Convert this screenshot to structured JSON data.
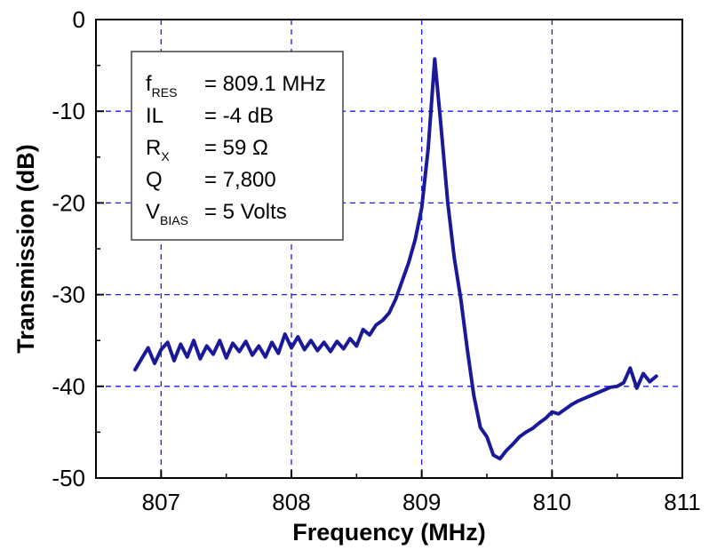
{
  "chart_data": {
    "type": "line",
    "title": "",
    "xlabel": "Frequency (MHz)",
    "ylabel": "Transmission (dB)",
    "xlim": [
      806.5,
      811
    ],
    "ylim": [
      -50,
      0
    ],
    "x_ticks": [
      807,
      808,
      809,
      810,
      811
    ],
    "y_ticks": [
      0,
      -10,
      -20,
      -30,
      -40,
      -50
    ],
    "x_tick_labels": [
      "807",
      "808",
      "809",
      "810",
      "811"
    ],
    "y_tick_labels": [
      "0",
      "-10",
      "-20",
      "-30",
      "-40",
      "-50"
    ],
    "grid": true,
    "grid_style": "dashed",
    "grid_color": "#1a1aff",
    "line_color": "#1a1a99",
    "series": [
      {
        "points": [
          [
            806.8,
            -38.2
          ],
          [
            806.85,
            -37.0
          ],
          [
            806.9,
            -35.8
          ],
          [
            806.95,
            -37.5
          ],
          [
            807.0,
            -36.0
          ],
          [
            807.05,
            -35.2
          ],
          [
            807.1,
            -37.2
          ],
          [
            807.15,
            -35.4
          ],
          [
            807.2,
            -36.8
          ],
          [
            807.25,
            -35.0
          ],
          [
            807.3,
            -37.0
          ],
          [
            807.35,
            -35.6
          ],
          [
            807.4,
            -36.5
          ],
          [
            807.45,
            -35.0
          ],
          [
            807.5,
            -36.9
          ],
          [
            807.55,
            -35.3
          ],
          [
            807.6,
            -36.2
          ],
          [
            807.65,
            -35.1
          ],
          [
            807.7,
            -36.6
          ],
          [
            807.75,
            -35.6
          ],
          [
            807.8,
            -36.8
          ],
          [
            807.85,
            -35.2
          ],
          [
            807.9,
            -36.4
          ],
          [
            807.95,
            -34.3
          ],
          [
            808.0,
            -35.8
          ],
          [
            808.05,
            -34.6
          ],
          [
            808.1,
            -36.0
          ],
          [
            808.15,
            -35.0
          ],
          [
            808.2,
            -36.1
          ],
          [
            808.25,
            -35.2
          ],
          [
            808.3,
            -36.2
          ],
          [
            808.35,
            -35.1
          ],
          [
            808.4,
            -35.9
          ],
          [
            808.45,
            -34.8
          ],
          [
            808.5,
            -35.6
          ],
          [
            808.55,
            -33.8
          ],
          [
            808.6,
            -34.4
          ],
          [
            808.65,
            -33.3
          ],
          [
            808.7,
            -32.8
          ],
          [
            808.75,
            -32.0
          ],
          [
            808.8,
            -30.5
          ],
          [
            808.85,
            -28.5
          ],
          [
            808.9,
            -26.5
          ],
          [
            808.95,
            -24.0
          ],
          [
            809.0,
            -20.5
          ],
          [
            809.05,
            -14.0
          ],
          [
            809.1,
            -4.3
          ],
          [
            809.15,
            -12.0
          ],
          [
            809.2,
            -20.0
          ],
          [
            809.25,
            -26.0
          ],
          [
            809.3,
            -30.5
          ],
          [
            809.35,
            -36.0
          ],
          [
            809.4,
            -41.0
          ],
          [
            809.45,
            -44.5
          ],
          [
            809.5,
            -45.5
          ],
          [
            809.55,
            -47.5
          ],
          [
            809.6,
            -47.9
          ],
          [
            809.65,
            -47.0
          ],
          [
            809.7,
            -46.3
          ],
          [
            809.75,
            -45.5
          ],
          [
            809.8,
            -45.0
          ],
          [
            809.85,
            -44.6
          ],
          [
            809.9,
            -44.0
          ],
          [
            809.95,
            -43.5
          ],
          [
            810.0,
            -42.8
          ],
          [
            810.05,
            -43.0
          ],
          [
            810.1,
            -42.5
          ],
          [
            810.15,
            -42.0
          ],
          [
            810.2,
            -41.6
          ],
          [
            810.25,
            -41.3
          ],
          [
            810.3,
            -41.0
          ],
          [
            810.35,
            -40.7
          ],
          [
            810.4,
            -40.4
          ],
          [
            810.45,
            -40.1
          ],
          [
            810.5,
            -40.0
          ],
          [
            810.55,
            -39.6
          ],
          [
            810.6,
            -38.0
          ],
          [
            810.65,
            -40.2
          ],
          [
            810.7,
            -38.6
          ],
          [
            810.75,
            -39.5
          ],
          [
            810.8,
            -38.9
          ]
        ]
      }
    ],
    "annotation_box": {
      "position": "top-left",
      "lines": [
        {
          "main": "f",
          "sub": "RES",
          "value": "= 809.1 MHz"
        },
        {
          "main": "IL",
          "sub": "",
          "value": "= -4 dB"
        },
        {
          "main": "R",
          "sub": "X",
          "value": "= 59 Ω"
        },
        {
          "main": "Q",
          "sub": "",
          "value": "= 7,800"
        },
        {
          "main": "V",
          "sub": "BIAS",
          "value": "= 5 Volts"
        }
      ]
    }
  }
}
